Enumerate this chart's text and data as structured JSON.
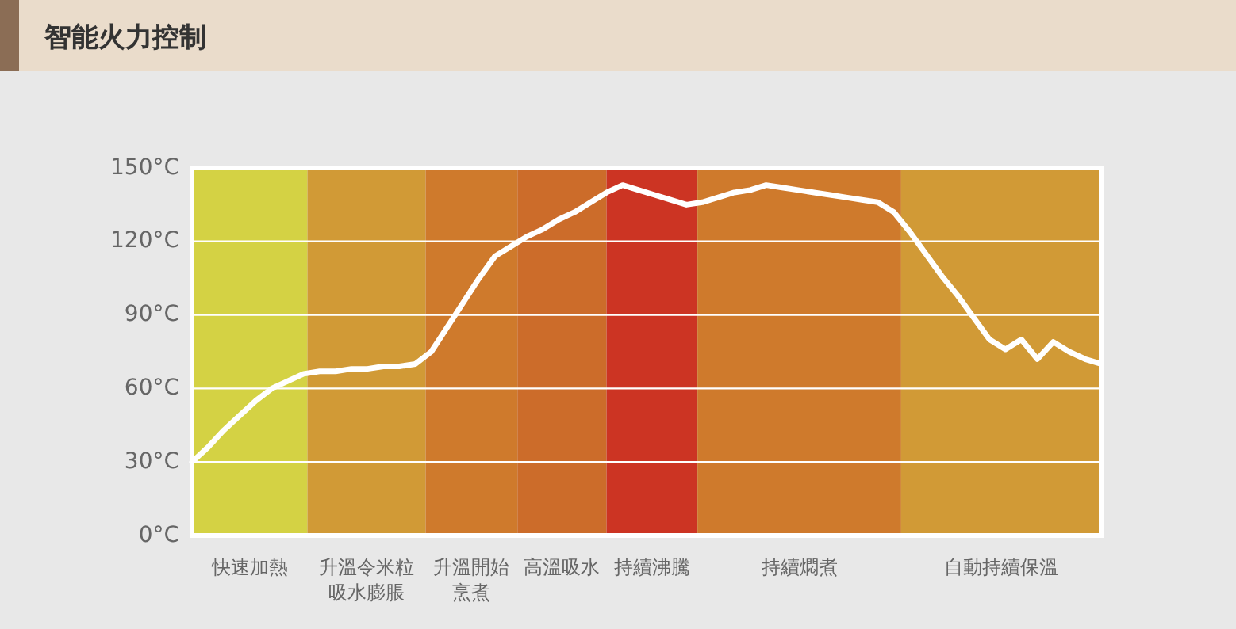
{
  "chart_data": {
    "type": "line",
    "title": "智能火力控制",
    "categories": [
      null,
      null,
      null,
      null,
      null,
      null,
      null,
      null,
      null,
      null,
      null,
      null,
      null,
      null,
      null,
      null,
      null,
      null,
      null,
      null,
      null,
      null,
      null,
      null,
      null,
      null,
      null,
      null,
      null,
      null,
      null,
      null,
      null,
      null,
      null,
      null,
      null,
      null,
      null,
      null,
      null,
      null,
      null,
      null,
      null,
      null,
      null,
      null,
      null,
      null,
      null,
      null,
      null,
      null,
      null,
      null,
      null,
      null
    ],
    "ylim": [
      0,
      150
    ],
    "yticks": [
      {
        "value": 0,
        "label": "0°C"
      },
      {
        "value": 30,
        "label": "30°C"
      },
      {
        "value": 60,
        "label": "60°C"
      },
      {
        "value": 90,
        "label": "90°C"
      },
      {
        "value": 120,
        "label": "120°C"
      },
      {
        "value": 150,
        "label": "150°C"
      }
    ],
    "tick_labels": "y",
    "grid": "y",
    "annotations": [
      "快速加熱",
      "升溫令米粒吸水膨脹",
      "升溫開始烹煮",
      "高溫吸水",
      "持續沸騰",
      "持續燜煮",
      "自動持續保溫"
    ],
    "series": [
      {
        "color": "#ffffff",
        "values": [
          30,
          36,
          43,
          49,
          55,
          60,
          63,
          66,
          67,
          67,
          68,
          68,
          69,
          69,
          70,
          75,
          85,
          95,
          105,
          114,
          118,
          122,
          125,
          129,
          132,
          136,
          140,
          143,
          141,
          139,
          137,
          135,
          136,
          138,
          140,
          141,
          143,
          142,
          141,
          140,
          139,
          138,
          137,
          136,
          132,
          124,
          115,
          106,
          98,
          89,
          80,
          76,
          80,
          72,
          79,
          75,
          72,
          70
        ]
      }
    ]
  }
}
